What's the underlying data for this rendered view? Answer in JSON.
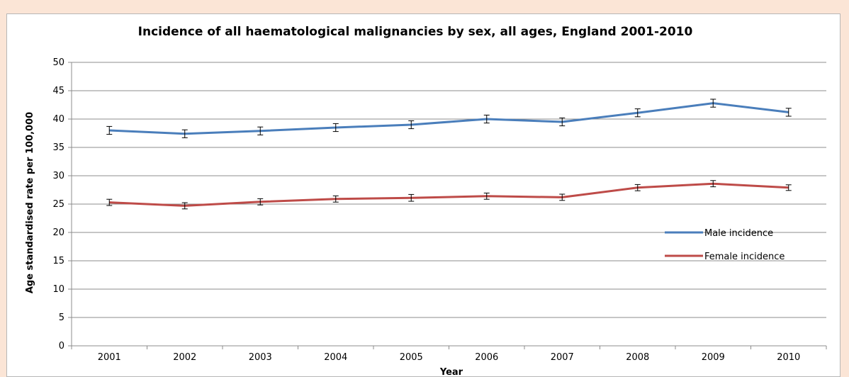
{
  "chart_data": {
    "type": "line",
    "title": "Incidence of all haematological malignancies by sex, all ages, England 2001-2010",
    "xlabel": "Year",
    "ylabel": "Age standardised rate per 100,000",
    "ylim": [
      0,
      50
    ],
    "yticks": [
      "0",
      "5",
      "10",
      "15",
      "20",
      "25",
      "30",
      "35",
      "40",
      "45",
      "50"
    ],
    "categories": [
      "2001",
      "2002",
      "2003",
      "2004",
      "2005",
      "2006",
      "2007",
      "2008",
      "2009",
      "2010"
    ],
    "grid": true,
    "legend_position": "right",
    "error_bars": true,
    "series": [
      {
        "name": "Male incidence",
        "color": "#4a7ebb",
        "values": [
          38.0,
          37.4,
          37.9,
          38.5,
          39.0,
          40.0,
          39.5,
          41.1,
          42.8,
          41.2
        ],
        "error": [
          0.7,
          0.7,
          0.7,
          0.7,
          0.7,
          0.7,
          0.7,
          0.7,
          0.7,
          0.7
        ]
      },
      {
        "name": "Female incidence",
        "color": "#be4b48",
        "values": [
          25.3,
          24.7,
          25.4,
          25.9,
          26.1,
          26.4,
          26.2,
          27.9,
          28.6,
          27.9
        ],
        "error": [
          0.55,
          0.55,
          0.55,
          0.55,
          0.6,
          0.55,
          0.55,
          0.55,
          0.55,
          0.5
        ]
      }
    ]
  }
}
